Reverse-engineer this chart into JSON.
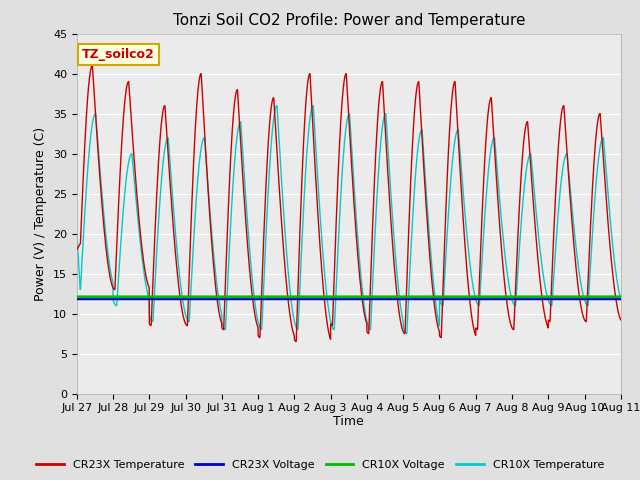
{
  "title": "Tonzi Soil CO2 Profile: Power and Temperature",
  "ylabel": "Power (V) / Temperature (C)",
  "xlabel": "Time",
  "annotation": "TZ_soilco2",
  "ylim": [
    0,
    45
  ],
  "yticks": [
    0,
    5,
    10,
    15,
    20,
    25,
    30,
    35,
    40,
    45
  ],
  "xtick_labels": [
    "Jul 27",
    "Jul 28",
    "Jul 29",
    "Jul 30",
    "Jul 31",
    "Aug 1",
    "Aug 2",
    "Aug 3",
    "Aug 4",
    "Aug 5",
    "Aug 6",
    "Aug 7",
    "Aug 8",
    "Aug 9",
    "Aug 10",
    "Aug 11"
  ],
  "cr23x_voltage_value": 11.8,
  "cr10x_voltage_value": 12.1,
  "bg_color": "#e0e0e0",
  "plot_bg_color": "#ebebeb",
  "cr23x_temp_color": "#cc0000",
  "cr23x_voltage_color": "#0000cc",
  "cr10x_voltage_color": "#00bb00",
  "cr10x_temp_color": "#00cccc",
  "legend_labels": [
    "CR23X Temperature",
    "CR23X Voltage",
    "CR10X Voltage",
    "CR10X Temperature"
  ],
  "title_fontsize": 11,
  "label_fontsize": 9,
  "tick_fontsize": 8,
  "n_days": 15,
  "cr23x_peaks": [
    41,
    39,
    36,
    40,
    38,
    37,
    40,
    40,
    39,
    39,
    39,
    37,
    34,
    36,
    35
  ],
  "cr23x_troughs": [
    13,
    13,
    8.5,
    8.5,
    8,
    7,
    6.5,
    8.5,
    7.5,
    7.5,
    7,
    8,
    8,
    9,
    9
  ],
  "cr10x_peaks": [
    35,
    30,
    32,
    32,
    34,
    36,
    36,
    35,
    35,
    33,
    33,
    32,
    30,
    30,
    32
  ],
  "cr10x_troughs": [
    13,
    11,
    9,
    9,
    8,
    8,
    8,
    8,
    8,
    7.5,
    11,
    11,
    11,
    11,
    11
  ]
}
